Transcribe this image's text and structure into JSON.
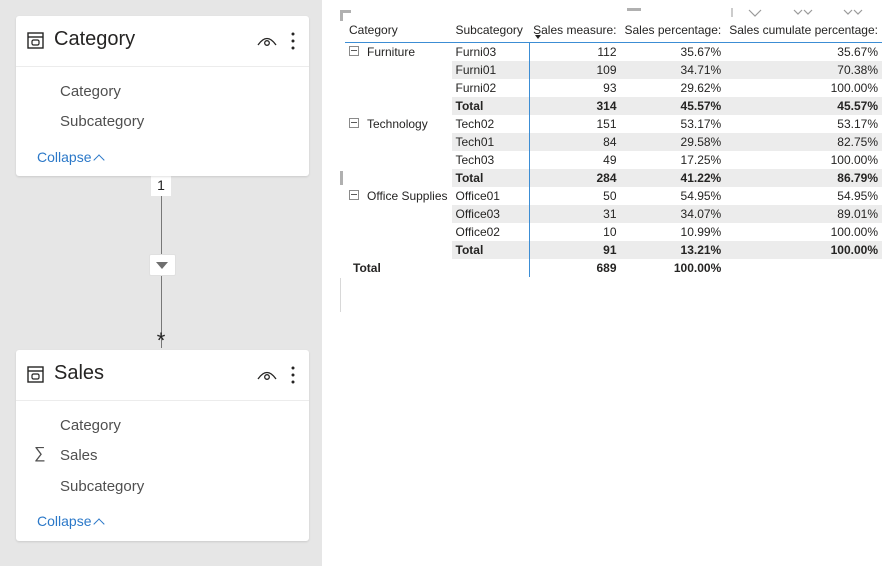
{
  "model_view": {
    "relationship": {
      "from_cardinality": "1",
      "to_cardinality": "*"
    },
    "tables": [
      {
        "name": "Category",
        "fields": [
          {
            "label": "Category",
            "icon": ""
          },
          {
            "label": "Subcategory",
            "icon": ""
          }
        ],
        "collapse_label": "Collapse"
      },
      {
        "name": "Sales",
        "fields": [
          {
            "label": "Category",
            "icon": ""
          },
          {
            "label": "Sales",
            "icon": "∑"
          },
          {
            "label": "Subcategory",
            "icon": ""
          }
        ],
        "collapse_label": "Collapse"
      }
    ]
  },
  "matrix": {
    "headers": [
      "Category",
      "Subcategory",
      "Sales measure:",
      "Sales percentage:",
      "Sales cumulate percentage:"
    ],
    "sorted_column": "Sales measure:",
    "groups": [
      {
        "category": "Furniture",
        "rows": [
          {
            "sub": "Furni03",
            "sales": "112",
            "pct": "35.67%",
            "cum": "35.67%"
          },
          {
            "sub": "Furni01",
            "sales": "109",
            "pct": "34.71%",
            "cum": "70.38%"
          },
          {
            "sub": "Furni02",
            "sales": "93",
            "pct": "29.62%",
            "cum": "100.00%"
          }
        ],
        "total": {
          "label": "Total",
          "sales": "314",
          "pct": "45.57%",
          "cum": "45.57%"
        }
      },
      {
        "category": "Technology",
        "rows": [
          {
            "sub": "Tech02",
            "sales": "151",
            "pct": "53.17%",
            "cum": "53.17%"
          },
          {
            "sub": "Tech01",
            "sales": "84",
            "pct": "29.58%",
            "cum": "82.75%"
          },
          {
            "sub": "Tech03",
            "sales": "49",
            "pct": "17.25%",
            "cum": "100.00%"
          }
        ],
        "total": {
          "label": "Total",
          "sales": "284",
          "pct": "41.22%",
          "cum": "86.79%"
        }
      },
      {
        "category": "Office Supplies",
        "rows": [
          {
            "sub": "Office01",
            "sales": "50",
            "pct": "54.95%",
            "cum": "54.95%"
          },
          {
            "sub": "Office03",
            "sales": "31",
            "pct": "34.07%",
            "cum": "89.01%"
          },
          {
            "sub": "Office02",
            "sales": "10",
            "pct": "10.99%",
            "cum": "100.00%"
          }
        ],
        "total": {
          "label": "Total",
          "sales": "91",
          "pct": "13.21%",
          "cum": "100.00%"
        }
      }
    ],
    "grand_total": {
      "label": "Total",
      "sales": "689",
      "pct": "100.00%",
      "cum": ""
    }
  },
  "colors": {
    "accent": "#2b78c8",
    "row_shade": "#ececec",
    "canvas": "#e6e6e6"
  }
}
